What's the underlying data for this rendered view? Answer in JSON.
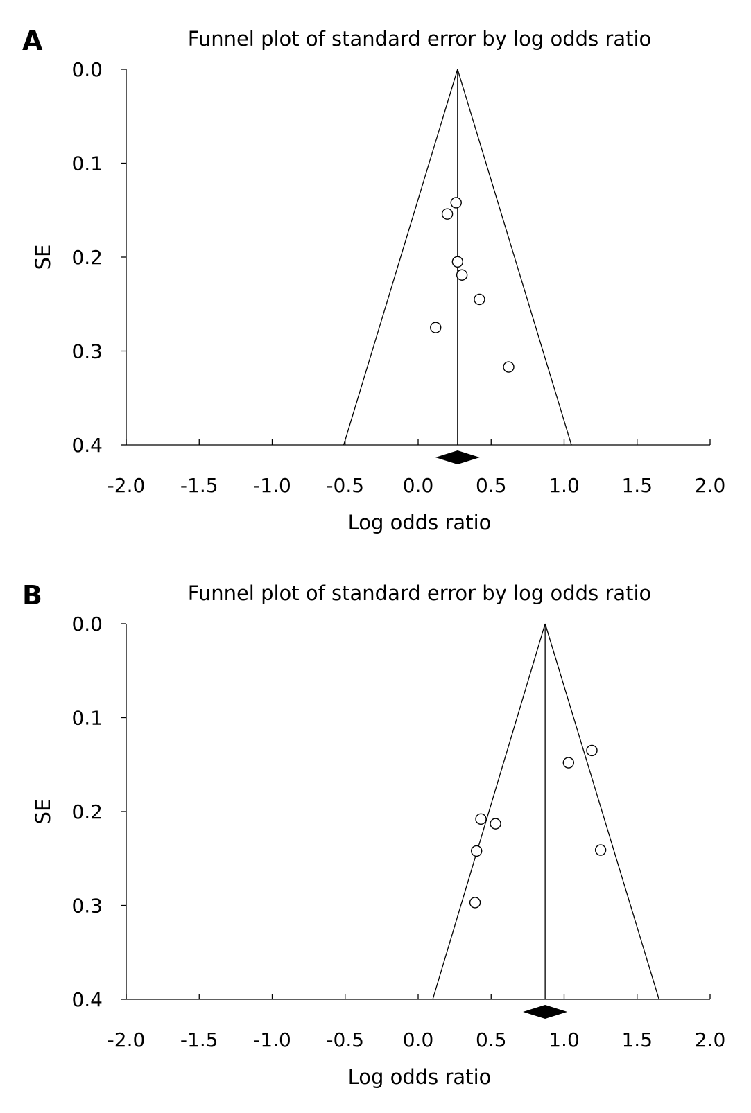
{
  "chart_data": [
    {
      "panel": "A",
      "type": "scatter",
      "title": "Funnel plot of standard error by log odds ratio",
      "xlabel": "Log odds ratio",
      "ylabel": "SE",
      "xlim": [
        -2.0,
        2.0
      ],
      "ylim": [
        0.0,
        0.4
      ],
      "y_inverted": true,
      "x_ticks": [
        "-2.0",
        "-1.5",
        "-1.0",
        "-0.5",
        "0.0",
        "0.5",
        "1.0",
        "1.5",
        "2.0"
      ],
      "y_ticks": [
        "0.0",
        "0.1",
        "0.2",
        "0.3",
        "0.4"
      ],
      "pooled_estimate": 0.27,
      "funnel_bottom": [
        -0.51,
        1.05
      ],
      "points": [
        {
          "x": 0.26,
          "y": 0.142
        },
        {
          "x": 0.2,
          "y": 0.154
        },
        {
          "x": 0.27,
          "y": 0.205
        },
        {
          "x": 0.3,
          "y": 0.219
        },
        {
          "x": 0.42,
          "y": 0.245
        },
        {
          "x": 0.12,
          "y": 0.275
        },
        {
          "x": 0.62,
          "y": 0.317
        }
      ]
    },
    {
      "panel": "B",
      "type": "scatter",
      "title": "Funnel plot of standard error by log odds ratio",
      "xlabel": "Log odds ratio",
      "ylabel": "SE",
      "xlim": [
        -2.0,
        2.0
      ],
      "ylim": [
        0.0,
        0.4
      ],
      "y_inverted": true,
      "x_ticks": [
        "-2.0",
        "-1.5",
        "-1.0",
        "-0.5",
        "0.0",
        "0.5",
        "1.0",
        "1.5",
        "2.0"
      ],
      "y_ticks": [
        "0.0",
        "0.1",
        "0.2",
        "0.3",
        "0.4"
      ],
      "pooled_estimate": 0.87,
      "funnel_bottom": [
        0.1,
        1.65
      ],
      "points": [
        {
          "x": 1.19,
          "y": 0.135
        },
        {
          "x": 1.03,
          "y": 0.148
        },
        {
          "x": 0.43,
          "y": 0.208
        },
        {
          "x": 0.53,
          "y": 0.213
        },
        {
          "x": 0.4,
          "y": 0.242
        },
        {
          "x": 1.25,
          "y": 0.241
        },
        {
          "x": 0.39,
          "y": 0.297
        }
      ]
    }
  ]
}
